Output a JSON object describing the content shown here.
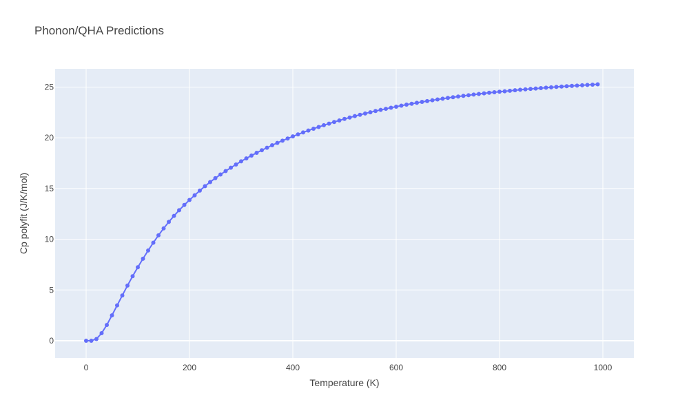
{
  "chart_data": {
    "type": "line",
    "title": "Phonon/QHA Predictions",
    "xlabel": "Temperature (K)",
    "ylabel": "Cp polyfit (J/K/mol)",
    "xlim": [
      -60,
      1060
    ],
    "ylim": [
      -1.7,
      26.8
    ],
    "xticks": [
      0,
      200,
      400,
      600,
      800,
      1000
    ],
    "yticks": [
      0,
      5,
      10,
      15,
      20,
      25
    ],
    "grid": true,
    "legend": "none",
    "colors": {
      "plot_bg": "#e5ecf6",
      "series": "#636efa",
      "grid": "#ffffff"
    },
    "series": [
      {
        "mode": "lines+markers",
        "x": [
          0,
          10,
          20,
          30,
          40,
          50,
          60,
          70,
          80,
          90,
          100,
          110,
          120,
          130,
          140,
          150,
          160,
          170,
          180,
          190,
          200,
          210,
          220,
          230,
          240,
          250,
          260,
          270,
          280,
          290,
          300,
          310,
          320,
          330,
          340,
          350,
          360,
          370,
          380,
          390,
          400,
          410,
          420,
          430,
          440,
          450,
          460,
          470,
          480,
          490,
          500,
          510,
          520,
          530,
          540,
          550,
          560,
          570,
          580,
          590,
          600,
          610,
          620,
          630,
          640,
          650,
          660,
          670,
          680,
          690,
          700,
          710,
          720,
          730,
          740,
          750,
          760,
          770,
          780,
          790,
          800,
          810,
          820,
          830,
          840,
          850,
          860,
          870,
          880,
          890,
          900,
          910,
          920,
          930,
          940,
          950,
          960,
          970,
          980,
          990
        ],
        "y": [
          0,
          0,
          0.17,
          0.74,
          1.55,
          2.5,
          3.48,
          4.46,
          5.43,
          6.36,
          7.24,
          8.08,
          8.89,
          9.66,
          10.39,
          11.07,
          11.71,
          12.3,
          12.86,
          13.38,
          13.87,
          14.33,
          14.8,
          15.23,
          15.64,
          16.02,
          16.38,
          16.72,
          17.05,
          17.37,
          17.68,
          17.97,
          18.25,
          18.52,
          18.78,
          19.02,
          19.27,
          19.5,
          19.72,
          19.93,
          20.14,
          20.34,
          20.53,
          20.72,
          20.9,
          21.07,
          21.24,
          21.4,
          21.56,
          21.71,
          21.86,
          22,
          22.14,
          22.27,
          22.4,
          22.52,
          22.64,
          22.75,
          22.86,
          22.97,
          23.07,
          23.17,
          23.27,
          23.36,
          23.45,
          23.54,
          23.62,
          23.7,
          23.78,
          23.86,
          23.93,
          24,
          24.07,
          24.14,
          24.2,
          24.26,
          24.32,
          24.38,
          24.44,
          24.49,
          24.54,
          24.59,
          24.64,
          24.69,
          24.74,
          24.78,
          24.82,
          24.86,
          24.9,
          24.94,
          24.98,
          25.02,
          25.05,
          25.09,
          25.12,
          25.15,
          25.18,
          25.21,
          25.24,
          25.27
        ]
      }
    ]
  }
}
